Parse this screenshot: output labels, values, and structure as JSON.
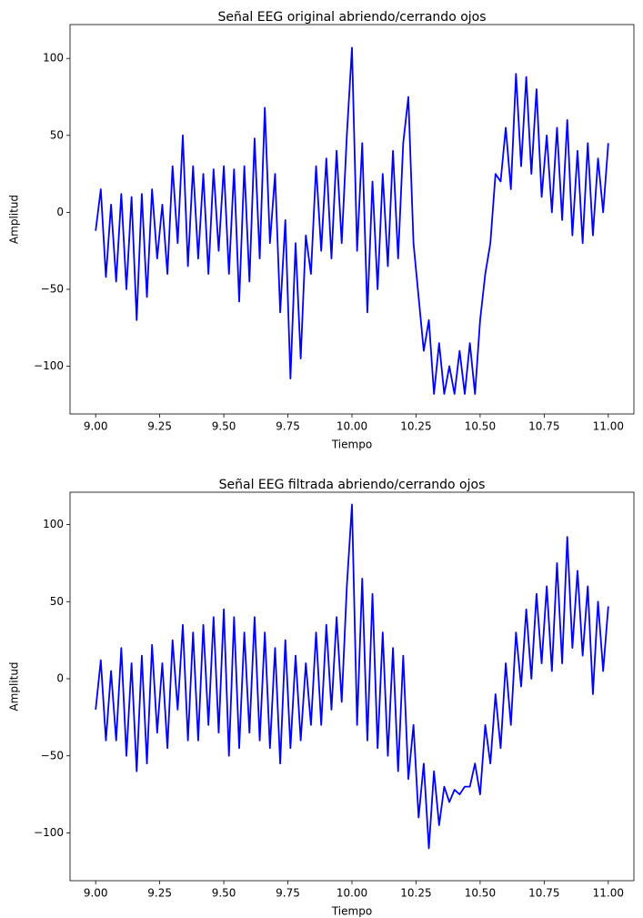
{
  "chart_data": [
    {
      "type": "line",
      "title": "Señal EEG original abriendo/cerrando ojos",
      "xlabel": "Tiempo",
      "ylabel": "Amplitud",
      "color": "#0000ff",
      "x": [
        9,
        9.02,
        9.04,
        9.06,
        9.08,
        9.1,
        9.12,
        9.14,
        9.16,
        9.18,
        9.2,
        9.22,
        9.24,
        9.26,
        9.28,
        9.3,
        9.32,
        9.34,
        9.36,
        9.38,
        9.4,
        9.42,
        9.44,
        9.46,
        9.48,
        9.5,
        9.52,
        9.54,
        9.56,
        9.58,
        9.6,
        9.62,
        9.64,
        9.66,
        9.68,
        9.7,
        9.72,
        9.74,
        9.76,
        9.78,
        9.8,
        9.82,
        9.84,
        9.86,
        9.88,
        9.9,
        9.92,
        9.94,
        9.96,
        9.98,
        10,
        10.02,
        10.04,
        10.06,
        10.08,
        10.1,
        10.12,
        10.14,
        10.16,
        10.18,
        10.2,
        10.22,
        10.24,
        10.26,
        10.28,
        10.3,
        10.32,
        10.34,
        10.36,
        10.38,
        10.4,
        10.42,
        10.44,
        10.46,
        10.48,
        10.5,
        10.52,
        10.54,
        10.56,
        10.58,
        10.6,
        10.62,
        10.64,
        10.66,
        10.68,
        10.7,
        10.72,
        10.74,
        10.76,
        10.78,
        10.8,
        10.82,
        10.84,
        10.86,
        10.88,
        10.9,
        10.92,
        10.94,
        10.96,
        10.98,
        11
      ],
      "values": [
        -12,
        15,
        -42,
        5,
        -45,
        12,
        -50,
        10,
        -70,
        12,
        -55,
        15,
        -30,
        5,
        -40,
        30,
        -20,
        50,
        -35,
        30,
        -30,
        25,
        -40,
        28,
        -25,
        30,
        -40,
        28,
        -58,
        30,
        -45,
        48,
        -30,
        68,
        -20,
        25,
        -65,
        -5,
        -108,
        -20,
        -95,
        -15,
        -40,
        30,
        -25,
        35,
        -30,
        40,
        -20,
        50,
        107,
        -25,
        45,
        -65,
        20,
        -50,
        25,
        -35,
        40,
        -30,
        45,
        75,
        -20,
        -55,
        -90,
        -70,
        -118,
        -85,
        -118,
        -100,
        -118,
        -90,
        -118,
        -85,
        -118,
        -70,
        -40,
        -20,
        25,
        20,
        55,
        15,
        90,
        30,
        88,
        25,
        80,
        10,
        50,
        0,
        55,
        -5,
        60,
        -15,
        40,
        -20,
        45,
        -15,
        35,
        0,
        45
      ],
      "xlim": [
        8.9,
        11.1
      ],
      "ylim": [
        -131,
        122
      ],
      "xticks": [
        {
          "value": 9,
          "label": "9.00"
        },
        {
          "value": 9.25,
          "label": "9.25"
        },
        {
          "value": 9.5,
          "label": "9.50"
        },
        {
          "value": 9.75,
          "label": "9.75"
        },
        {
          "value": 10,
          "label": "10.00"
        },
        {
          "value": 10.25,
          "label": "10.25"
        },
        {
          "value": 10.5,
          "label": "10.50"
        },
        {
          "value": 10.75,
          "label": "10.75"
        },
        {
          "value": 11,
          "label": "11.00"
        }
      ],
      "yticks": [
        {
          "value": -100,
          "label": "−100"
        },
        {
          "value": -50,
          "label": "−50"
        },
        0,
        50,
        100
      ]
    },
    {
      "type": "line",
      "title": "Señal EEG filtrada abriendo/cerrando ojos",
      "xlabel": "Tiempo",
      "ylabel": "Amplitud",
      "color": "#0000ff",
      "x": [
        9,
        9.02,
        9.04,
        9.06,
        9.08,
        9.1,
        9.12,
        9.14,
        9.16,
        9.18,
        9.2,
        9.22,
        9.24,
        9.26,
        9.28,
        9.3,
        9.32,
        9.34,
        9.36,
        9.38,
        9.4,
        9.42,
        9.44,
        9.46,
        9.48,
        9.5,
        9.52,
        9.54,
        9.56,
        9.58,
        9.6,
        9.62,
        9.64,
        9.66,
        9.68,
        9.7,
        9.72,
        9.74,
        9.76,
        9.78,
        9.8,
        9.82,
        9.84,
        9.86,
        9.88,
        9.9,
        9.92,
        9.94,
        9.96,
        9.98,
        10,
        10.02,
        10.04,
        10.06,
        10.08,
        10.1,
        10.12,
        10.14,
        10.16,
        10.18,
        10.2,
        10.22,
        10.24,
        10.26,
        10.28,
        10.3,
        10.32,
        10.34,
        10.36,
        10.38,
        10.4,
        10.42,
        10.44,
        10.46,
        10.48,
        10.5,
        10.52,
        10.54,
        10.56,
        10.58,
        10.6,
        10.62,
        10.64,
        10.66,
        10.68,
        10.7,
        10.72,
        10.74,
        10.76,
        10.78,
        10.8,
        10.82,
        10.84,
        10.86,
        10.88,
        10.9,
        10.92,
        10.94,
        10.96,
        10.98,
        11
      ],
      "values": [
        -20,
        12,
        -40,
        5,
        -40,
        20,
        -50,
        10,
        -60,
        15,
        -55,
        22,
        -35,
        10,
        -45,
        25,
        -20,
        35,
        -40,
        30,
        -40,
        35,
        -30,
        40,
        -35,
        45,
        -50,
        40,
        -45,
        30,
        -35,
        40,
        -40,
        30,
        -45,
        20,
        -55,
        25,
        -45,
        15,
        -40,
        10,
        -30,
        30,
        -30,
        35,
        -20,
        40,
        -15,
        60,
        113,
        -30,
        65,
        -40,
        55,
        -45,
        30,
        -50,
        20,
        -60,
        15,
        -65,
        -30,
        -90,
        -55,
        -110,
        -60,
        -95,
        -70,
        -80,
        -72,
        -75,
        -70,
        -70,
        -55,
        -75,
        -30,
        -55,
        -10,
        -45,
        10,
        -30,
        30,
        -5,
        45,
        0,
        55,
        10,
        60,
        5,
        75,
        10,
        92,
        20,
        70,
        15,
        60,
        -10,
        50,
        5,
        47
      ],
      "xlim": [
        8.9,
        11.1
      ],
      "ylim": [
        -131,
        121
      ],
      "xticks": [
        {
          "value": 9,
          "label": "9.00"
        },
        {
          "value": 9.25,
          "label": "9.25"
        },
        {
          "value": 9.5,
          "label": "9.50"
        },
        {
          "value": 9.75,
          "label": "9.75"
        },
        {
          "value": 10,
          "label": "10.00"
        },
        {
          "value": 10.25,
          "label": "10.25"
        },
        {
          "value": 10.5,
          "label": "10.50"
        },
        {
          "value": 10.75,
          "label": "10.75"
        },
        {
          "value": 11,
          "label": "11.00"
        }
      ],
      "yticks": [
        {
          "value": -100,
          "label": "−100"
        },
        {
          "value": -50,
          "label": "−50"
        },
        0,
        50,
        100
      ]
    }
  ]
}
